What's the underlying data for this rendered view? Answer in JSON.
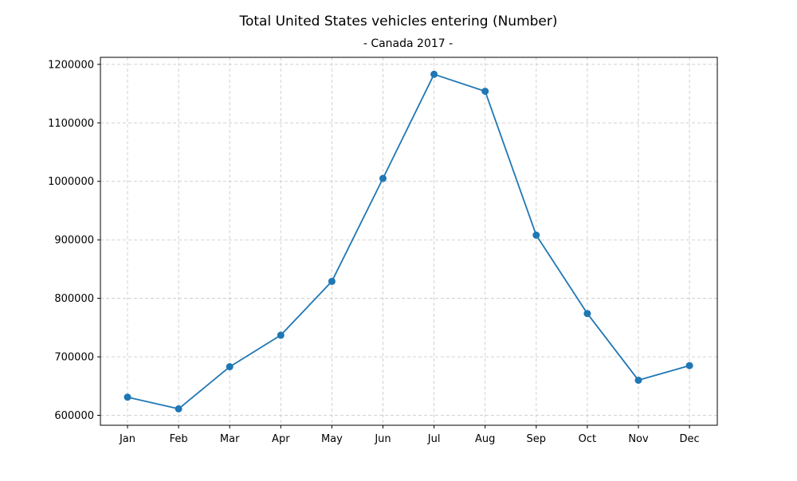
{
  "chart_data": {
    "type": "line",
    "title": "Total United States vehicles entering (Number)",
    "subtitle": "- Canada 2017 -",
    "xlabel": "",
    "ylabel": "",
    "categories": [
      "Jan",
      "Feb",
      "Mar",
      "Apr",
      "May",
      "Jun",
      "Jul",
      "Aug",
      "Sep",
      "Oct",
      "Nov",
      "Dec"
    ],
    "series": [
      {
        "name": "Total United States vehicles entering",
        "values": [
          631000,
          611000,
          683000,
          737000,
          829000,
          1005000,
          1183000,
          1154000,
          908000,
          774000,
          660000,
          685000
        ],
        "color": "#1f77b4"
      }
    ],
    "ylim": [
      583000,
      1212000
    ],
    "yticks": [
      600000,
      700000,
      800000,
      900000,
      1000000,
      1100000,
      1200000
    ],
    "ytick_labels": [
      "600000",
      "700000",
      "800000",
      "900000",
      "1000000",
      "1100000",
      "1200000"
    ],
    "grid": true,
    "grid_color": "#cccccc",
    "legend": "none"
  }
}
